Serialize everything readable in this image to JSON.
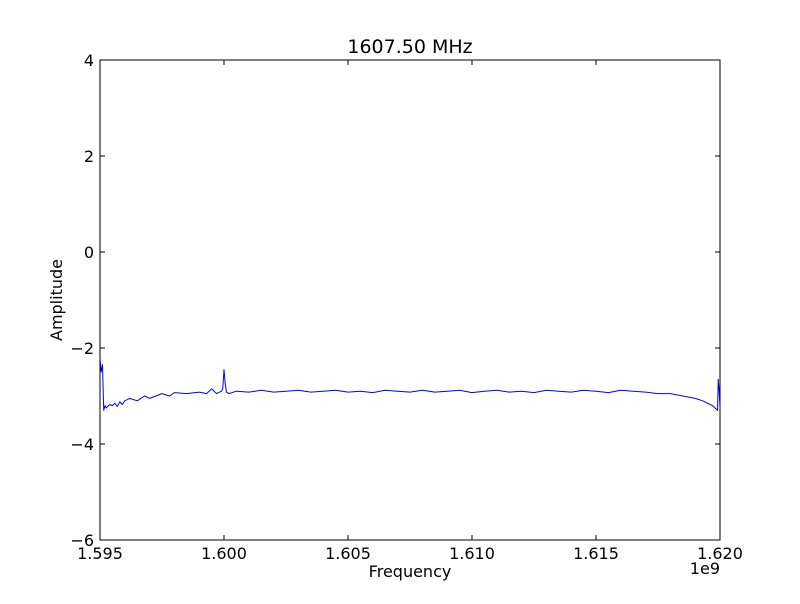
{
  "chart_data": {
    "type": "line",
    "title": "1607.50 MHz",
    "xlabel": "Frequency",
    "ylabel": "Amplitude",
    "x_offset_text": "1e9",
    "xlim": [
      1.595,
      1.62
    ],
    "ylim": [
      -6,
      4
    ],
    "x_tick_values": [
      1.595,
      1.6,
      1.605,
      1.61,
      1.615,
      1.62
    ],
    "x_ticks": [
      "1.595",
      "1.600",
      "1.605",
      "1.610",
      "1.615",
      "1.620"
    ],
    "y_tick_values": [
      -6,
      -4,
      -2,
      0,
      2,
      4
    ],
    "y_ticks": [
      "−6",
      "−4",
      "−2",
      "0",
      "2",
      "4"
    ],
    "grid": false,
    "series": [
      {
        "color": "#0000ff",
        "x": [
          1.595,
          1.59505,
          1.5951,
          1.59515,
          1.5952,
          1.59525,
          1.5953,
          1.5954,
          1.5955,
          1.5956,
          1.5957,
          1.5958,
          1.5959,
          1.596,
          1.5962,
          1.5965,
          1.5968,
          1.597,
          1.5975,
          1.5978,
          1.598,
          1.5985,
          1.599,
          1.5993,
          1.5995,
          1.5997,
          1.5999,
          1.59995,
          1.6,
          1.60005,
          1.6001,
          1.6002,
          1.6005,
          1.601,
          1.6015,
          1.602,
          1.6025,
          1.603,
          1.6035,
          1.604,
          1.6045,
          1.605,
          1.6055,
          1.606,
          1.6065,
          1.607,
          1.6075,
          1.608,
          1.6085,
          1.609,
          1.6095,
          1.61,
          1.6105,
          1.611,
          1.6115,
          1.612,
          1.6125,
          1.613,
          1.6135,
          1.614,
          1.6145,
          1.615,
          1.6155,
          1.616,
          1.6165,
          1.617,
          1.6175,
          1.618,
          1.6185,
          1.619,
          1.6193,
          1.6195,
          1.6197,
          1.6198,
          1.6199,
          1.61993,
          1.61996,
          1.62
        ],
        "y": [
          -2.2,
          -2.5,
          -2.35,
          -3.3,
          -3.2,
          -3.25,
          -3.22,
          -3.18,
          -3.2,
          -3.15,
          -3.22,
          -3.12,
          -3.18,
          -3.1,
          -3.05,
          -3.1,
          -3.0,
          -3.05,
          -2.95,
          -3.0,
          -2.93,
          -2.95,
          -2.92,
          -2.95,
          -2.85,
          -2.95,
          -2.9,
          -2.85,
          -2.45,
          -2.75,
          -2.92,
          -2.95,
          -2.9,
          -2.92,
          -2.88,
          -2.92,
          -2.9,
          -2.88,
          -2.92,
          -2.9,
          -2.88,
          -2.92,
          -2.9,
          -2.93,
          -2.88,
          -2.9,
          -2.92,
          -2.88,
          -2.92,
          -2.9,
          -2.88,
          -2.93,
          -2.9,
          -2.88,
          -2.92,
          -2.9,
          -2.93,
          -2.88,
          -2.9,
          -2.92,
          -2.88,
          -2.9,
          -2.93,
          -2.88,
          -2.9,
          -2.92,
          -2.95,
          -2.95,
          -3.0,
          -3.05,
          -3.1,
          -3.15,
          -3.2,
          -3.25,
          -3.3,
          -2.65,
          -2.85,
          -3.25
        ]
      }
    ]
  }
}
